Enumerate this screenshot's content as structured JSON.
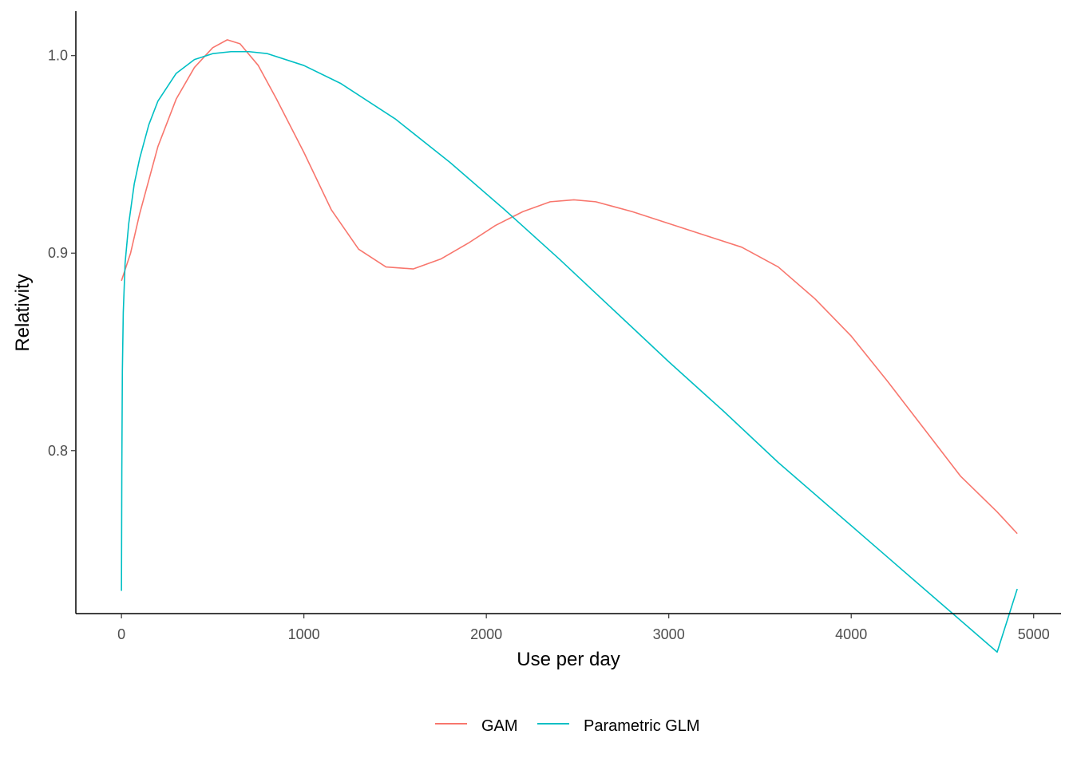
{
  "chart_data": {
    "type": "line",
    "title": "",
    "xlabel": "Use per day",
    "ylabel": "Relativity",
    "xlim": [
      -250,
      5150
    ],
    "ylim": [
      0.7175,
      1.0225
    ],
    "x_ticks": [
      0,
      1000,
      2000,
      3000,
      4000,
      5000
    ],
    "x_tick_labels": [
      "0",
      "1000",
      "2000",
      "3000",
      "4000",
      "5000"
    ],
    "y_ticks": [
      0.8,
      0.9,
      1.0
    ],
    "y_tick_labels": [
      "0.8",
      "0.9",
      "1.0"
    ],
    "grid": false,
    "legend_position": "bottom",
    "colors": {
      "GAM": "#F8766D",
      "Parametric GLM": "#00BFC4"
    },
    "series": [
      {
        "name": "GAM",
        "x": [
          0,
          50,
          100,
          200,
          300,
          400,
          500,
          580,
          650,
          750,
          850,
          1000,
          1150,
          1300,
          1450,
          1600,
          1750,
          1900,
          2050,
          2200,
          2350,
          2480,
          2600,
          2800,
          3000,
          3200,
          3400,
          3600,
          3800,
          4000,
          4200,
          4400,
          4600,
          4800,
          4910
        ],
        "y": [
          0.886,
          0.9,
          0.92,
          0.954,
          0.978,
          0.994,
          1.004,
          1.008,
          1.006,
          0.995,
          0.978,
          0.951,
          0.922,
          0.902,
          0.893,
          0.892,
          0.897,
          0.905,
          0.914,
          0.921,
          0.926,
          0.927,
          0.926,
          0.921,
          0.915,
          0.909,
          0.903,
          0.893,
          0.877,
          0.858,
          0.835,
          0.811,
          0.787,
          0.769,
          0.758
        ]
      },
      {
        "name": "Parametric GLM",
        "x": [
          0,
          2,
          5,
          10,
          20,
          40,
          70,
          100,
          150,
          200,
          300,
          400,
          500,
          600,
          700,
          800,
          1000,
          1200,
          1500,
          1800,
          2100,
          2400,
          2700,
          3000,
          3300,
          3600,
          3900,
          4200,
          4500,
          4800,
          4910
        ],
        "y": [
          0.729,
          0.79,
          0.84,
          0.87,
          0.895,
          0.915,
          0.935,
          0.948,
          0.965,
          0.977,
          0.991,
          0.998,
          1.001,
          1.002,
          1.002,
          1.001,
          0.995,
          0.986,
          0.968,
          0.946,
          0.922,
          0.897,
          0.871,
          0.845,
          0.82,
          0.794,
          0.77,
          0.746,
          0.722,
          0.698,
          0.73
        ]
      }
    ]
  }
}
